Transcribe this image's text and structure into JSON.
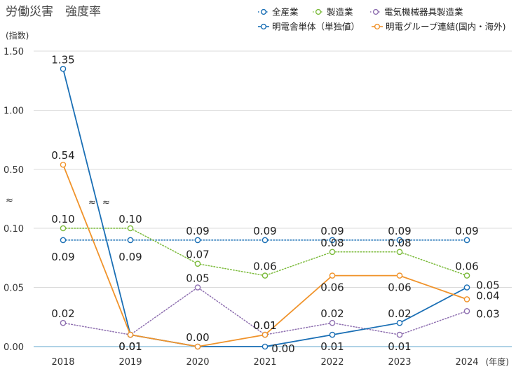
{
  "title": "労働災害　強度率",
  "chart_data": {
    "type": "line",
    "title": "労働災害　強度率",
    "ylabel": "(指数)",
    "xlabel": "(年度)",
    "x": [
      "2018",
      "2019",
      "2020",
      "2021",
      "2022",
      "2023",
      "2024"
    ],
    "y_ticks": [
      "0.00",
      "0.05",
      "0.10",
      "0.50",
      "1.00",
      "1.50"
    ],
    "axis_break_symbol": "≈",
    "y_scale": "broken: 0–0.10 linear below break, 0.50–1.50 linear above break",
    "grid": "horizontal",
    "legend_position": "top-right",
    "series": [
      {
        "name": "全産業",
        "color": "#1a6fb5",
        "style": "dotted",
        "values": [
          0.09,
          0.09,
          0.09,
          0.09,
          0.09,
          0.09,
          0.09
        ],
        "labels": [
          "0.09",
          "0.09",
          "0.09",
          "0.09",
          "0.09",
          "0.09",
          "0.09"
        ]
      },
      {
        "name": "製造業",
        "color": "#7cbb3c",
        "style": "dotted",
        "values": [
          0.1,
          0.1,
          0.07,
          0.06,
          0.08,
          0.08,
          0.06
        ],
        "labels": [
          "0.10",
          "0.10",
          "0.07",
          "0.06",
          "0.08",
          "0.08",
          "0.06"
        ]
      },
      {
        "name": "電気機械器具製造業",
        "color": "#8e6fb0",
        "style": "dotted",
        "values": [
          0.02,
          0.01,
          0.05,
          0.01,
          0.02,
          0.01,
          0.03
        ],
        "labels": [
          "0.02",
          "0.01",
          "0.05",
          "0.01",
          "0.02",
          "0.01",
          "0.03"
        ]
      },
      {
        "name": "明電舎単体（単独値）",
        "color": "#1a6fb5",
        "style": "solid",
        "values": [
          1.35,
          0.01,
          0.0,
          0.0,
          0.01,
          0.02,
          0.05
        ],
        "labels": [
          "1.35",
          "0.01",
          "0.00",
          "0.00",
          "0.01",
          "0.02",
          "0.05"
        ]
      },
      {
        "name": "明電グループ連結(国内・海外)",
        "color": "#f0932b",
        "style": "solid",
        "values": [
          0.54,
          0.01,
          0.0,
          0.01,
          0.06,
          0.06,
          0.04
        ],
        "labels": [
          "0.54",
          "0.01",
          "0.00",
          "0.01",
          "0.06",
          "0.06",
          "0.04"
        ]
      }
    ]
  }
}
